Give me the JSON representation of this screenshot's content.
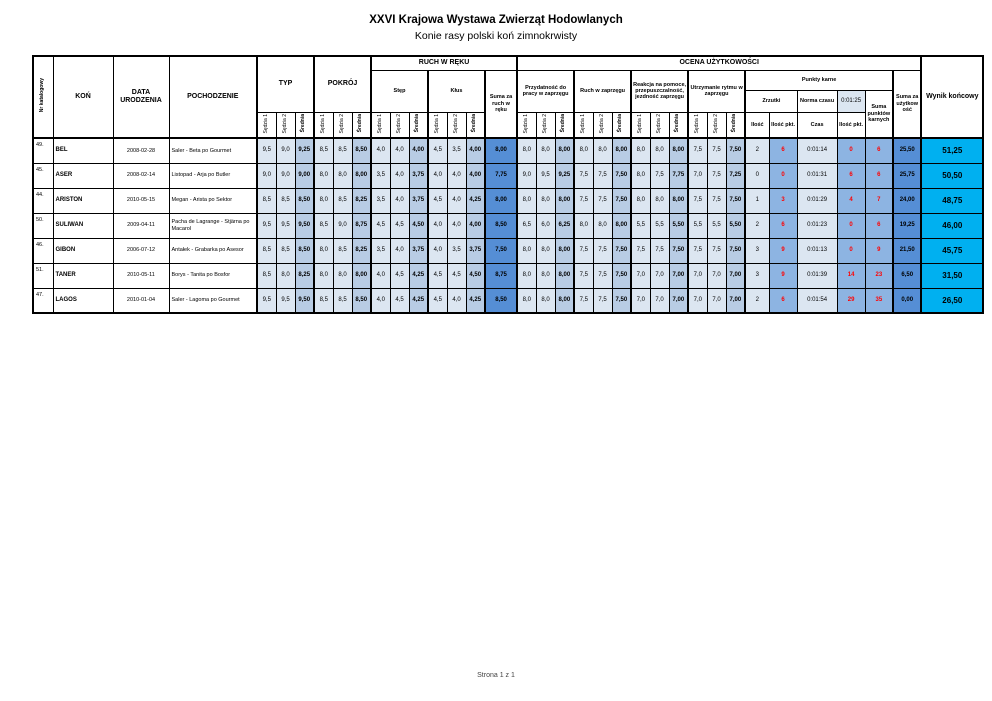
{
  "title": "XXVI Krajowa Wystawa Zwierząt Hodowlanych",
  "subtitle": "Konie rasy polski koń zimnokrwisty",
  "footer": {
    "page_label": "Strona 1 z 1"
  },
  "colors": {
    "cell_light": "#dce6f1",
    "cell_medium": "#b8cce4",
    "cell_penalty": "#8db4e2",
    "cell_sum": "#558ed5",
    "cell_final": "#00b0f0",
    "penalty_text": "#ff0000",
    "time_bg": "#dce6f1"
  },
  "table": {
    "headers": {
      "nr": "Nr katalogowy",
      "kon": "KOŃ",
      "data_urodzenia": "DATA URODZENIA",
      "pochodzenie": "POCHODZENIE",
      "typ": "TYP",
      "pokroj": "POKRÓJ",
      "ruch_w_reku": "RUCH W RĘKU",
      "step": "Stęp",
      "klus": "Kłus",
      "suma_ruch": "Suma za ruch w ręku",
      "ocena": "OCENA UŻYTKOWOŚCI",
      "przydatnosc": "Przydatność do pracy w zaprzęgu",
      "ruch_zaprzeg": "Ruch w zaprzęgu",
      "reakcja": "Reakcja na pomoce, przepuszczalność, jezdność zaprzęgu",
      "utrzymanie": "Utrzymanie rytmu w zaprzęgu",
      "punkty_karne": "Punkty karne",
      "zrzutki": "Zrzutki",
      "norma_czasu": "Norma czasu",
      "norma_czasu_value": "0:01:25",
      "ilosc": "Ilość",
      "ilosc_pkt": "Ilość pkt.",
      "czas": "Czas",
      "suma_karne": "Suma punktów karnych",
      "suma_uzytkowosc": "Suma za użytkowość",
      "wynik": "Wynik końcowy",
      "sedzia1": "Sędzia 1",
      "sedzia2": "Sędzia 2",
      "srednia": "Średnia"
    },
    "rows": [
      {
        "nr": "49.",
        "kon": "BEL",
        "data": "2008-02-28",
        "pochodzenie": "Saler - Beta po Gourmet",
        "typ": [
          "9,5",
          "9,0",
          "9,25"
        ],
        "pokroj": [
          "8,5",
          "8,5",
          "8,50"
        ],
        "step": [
          "4,0",
          "4,0",
          "4,00"
        ],
        "klus": [
          "4,5",
          "3,5",
          "4,00"
        ],
        "suma_ruch": "8,00",
        "przydatnosc": [
          "8,0",
          "8,0",
          "8,00"
        ],
        "ruch_zaprzeg": [
          "8,0",
          "8,0",
          "8,00"
        ],
        "reakcja": [
          "8,0",
          "8,0",
          "8,00"
        ],
        "utrzymanie": [
          "7,5",
          "7,5",
          "7,50"
        ],
        "zrzutki_ilosc": "2",
        "zrzutki_pkt": "6",
        "czas": "0:01:14",
        "czas_pkt": "0",
        "suma_karne": "6",
        "suma_uzytkowosc": "25,50",
        "wynik": "51,25"
      },
      {
        "nr": "45.",
        "kon": "ASER",
        "data": "2008-02-14",
        "pochodzenie": "Listopad - Arja po Butler",
        "typ": [
          "9,0",
          "9,0",
          "9,00"
        ],
        "pokroj": [
          "8,0",
          "8,0",
          "8,00"
        ],
        "step": [
          "3,5",
          "4,0",
          "3,75"
        ],
        "klus": [
          "4,0",
          "4,0",
          "4,00"
        ],
        "suma_ruch": "7,75",
        "przydatnosc": [
          "9,0",
          "9,5",
          "9,25"
        ],
        "ruch_zaprzeg": [
          "7,5",
          "7,5",
          "7,50"
        ],
        "reakcja": [
          "8,0",
          "7,5",
          "7,75"
        ],
        "utrzymanie": [
          "7,0",
          "7,5",
          "7,25"
        ],
        "zrzutki_ilosc": "0",
        "zrzutki_pkt": "0",
        "czas": "0:01:31",
        "czas_pkt": "6",
        "suma_karne": "6",
        "suma_uzytkowosc": "25,75",
        "wynik": "50,50"
      },
      {
        "nr": "44.",
        "kon": "ARISTON",
        "data": "2010-05-15",
        "pochodzenie": "Megan - Arista po Sektor",
        "typ": [
          "8,5",
          "8,5",
          "8,50"
        ],
        "pokroj": [
          "8,0",
          "8,5",
          "8,25"
        ],
        "step": [
          "3,5",
          "4,0",
          "3,75"
        ],
        "klus": [
          "4,5",
          "4,0",
          "4,25"
        ],
        "suma_ruch": "8,00",
        "przydatnosc": [
          "8,0",
          "8,0",
          "8,00"
        ],
        "ruch_zaprzeg": [
          "7,5",
          "7,5",
          "7,50"
        ],
        "reakcja": [
          "8,0",
          "8,0",
          "8,00"
        ],
        "utrzymanie": [
          "7,5",
          "7,5",
          "7,50"
        ],
        "zrzutki_ilosc": "1",
        "zrzutki_pkt": "3",
        "czas": "0:01:29",
        "czas_pkt": "4",
        "suma_karne": "7",
        "suma_uzytkowosc": "24,00",
        "wynik": "48,75"
      },
      {
        "nr": "50.",
        "kon": "SULIWAN",
        "data": "2009-04-11",
        "pochodzenie": "Pacha de Lagrange - Stjärna po Macarol",
        "typ": [
          "9,5",
          "9,5",
          "9,50"
        ],
        "pokroj": [
          "8,5",
          "9,0",
          "8,75"
        ],
        "step": [
          "4,5",
          "4,5",
          "4,50"
        ],
        "klus": [
          "4,0",
          "4,0",
          "4,00"
        ],
        "suma_ruch": "8,50",
        "przydatnosc": [
          "6,5",
          "6,0",
          "6,25"
        ],
        "ruch_zaprzeg": [
          "8,0",
          "8,0",
          "8,00"
        ],
        "reakcja": [
          "5,5",
          "5,5",
          "5,50"
        ],
        "utrzymanie": [
          "5,5",
          "5,5",
          "5,50"
        ],
        "zrzutki_ilosc": "2",
        "zrzutki_pkt": "6",
        "czas": "0:01:23",
        "czas_pkt": "0",
        "suma_karne": "6",
        "suma_uzytkowosc": "19,25",
        "wynik": "46,00"
      },
      {
        "nr": "46.",
        "kon": "GIBON",
        "data": "2006-07-12",
        "pochodzenie": "Antałek - Grabarka po Asesor",
        "typ": [
          "8,5",
          "8,5",
          "8,50"
        ],
        "pokroj": [
          "8,0",
          "8,5",
          "8,25"
        ],
        "step": [
          "3,5",
          "4,0",
          "3,75"
        ],
        "klus": [
          "4,0",
          "3,5",
          "3,75"
        ],
        "suma_ruch": "7,50",
        "przydatnosc": [
          "8,0",
          "8,0",
          "8,00"
        ],
        "ruch_zaprzeg": [
          "7,5",
          "7,5",
          "7,50"
        ],
        "reakcja": [
          "7,5",
          "7,5",
          "7,50"
        ],
        "utrzymanie": [
          "7,5",
          "7,5",
          "7,50"
        ],
        "zrzutki_ilosc": "3",
        "zrzutki_pkt": "9",
        "czas": "0:01:13",
        "czas_pkt": "0",
        "suma_karne": "9",
        "suma_uzytkowosc": "21,50",
        "wynik": "45,75"
      },
      {
        "nr": "51.",
        "kon": "TANER",
        "data": "2010-05-11",
        "pochodzenie": "Borys - Tanita po Bosfor",
        "typ": [
          "8,5",
          "8,0",
          "8,25"
        ],
        "pokroj": [
          "8,0",
          "8,0",
          "8,00"
        ],
        "step": [
          "4,0",
          "4,5",
          "4,25"
        ],
        "klus": [
          "4,5",
          "4,5",
          "4,50"
        ],
        "suma_ruch": "8,75",
        "przydatnosc": [
          "8,0",
          "8,0",
          "8,00"
        ],
        "ruch_zaprzeg": [
          "7,5",
          "7,5",
          "7,50"
        ],
        "reakcja": [
          "7,0",
          "7,0",
          "7,00"
        ],
        "utrzymanie": [
          "7,0",
          "7,0",
          "7,00"
        ],
        "zrzutki_ilosc": "3",
        "zrzutki_pkt": "9",
        "czas": "0:01:39",
        "czas_pkt": "14",
        "suma_karne": "23",
        "suma_uzytkowosc": "6,50",
        "wynik": "31,50"
      },
      {
        "nr": "47.",
        "kon": "LAGOS",
        "data": "2010-01-04",
        "pochodzenie": "Saler - Lagoma po Gourmet",
        "typ": [
          "9,5",
          "9,5",
          "9,50"
        ],
        "pokroj": [
          "8,5",
          "8,5",
          "8,50"
        ],
        "step": [
          "4,0",
          "4,5",
          "4,25"
        ],
        "klus": [
          "4,5",
          "4,0",
          "4,25"
        ],
        "suma_ruch": "8,50",
        "przydatnosc": [
          "8,0",
          "8,0",
          "8,00"
        ],
        "ruch_zaprzeg": [
          "7,5",
          "7,5",
          "7,50"
        ],
        "reakcja": [
          "7,0",
          "7,0",
          "7,00"
        ],
        "utrzymanie": [
          "7,0",
          "7,0",
          "7,00"
        ],
        "zrzutki_ilosc": "2",
        "zrzutki_pkt": "6",
        "czas": "0:01:54",
        "czas_pkt": "29",
        "suma_karne": "35",
        "suma_uzytkowosc": "0,00",
        "wynik": "26,50"
      }
    ]
  }
}
